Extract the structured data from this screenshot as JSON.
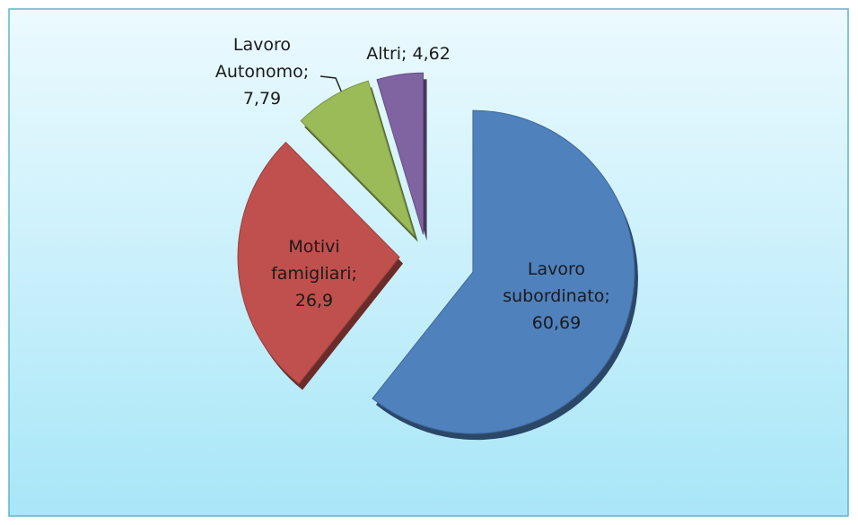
{
  "chart_data": {
    "type": "pie",
    "values": [
      60.69,
      26.9,
      7.79,
      4.62
    ],
    "value_labels": [
      "Lavoro\nsubordinato;\n60,69",
      "Motivi\nfamigliari;\n26,9",
      "Lavoro\nAutonomo;\n7,79",
      "Altri; 4,62"
    ],
    "colors": [
      "#4f81bd",
      "#c0504d",
      "#9bbb59",
      "#8064a2"
    ]
  }
}
